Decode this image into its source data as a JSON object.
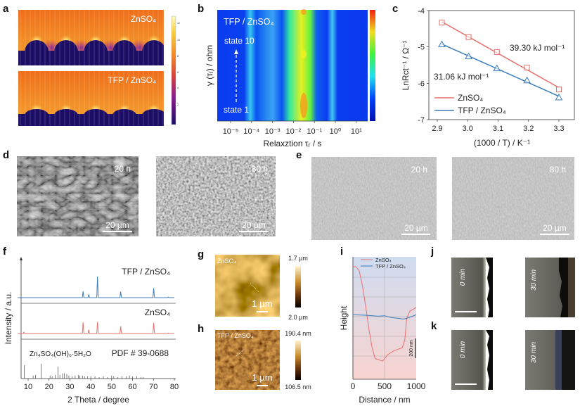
{
  "panel_labels": [
    "a",
    "b",
    "c",
    "d",
    "e",
    "f",
    "g",
    "h",
    "i",
    "j",
    "k"
  ],
  "panel_a": {
    "top_label": "ZnSO₄",
    "bottom_label": "TFP / ZnSO₄",
    "colorbar_ticks": [
      "12",
      "10",
      "8",
      "6",
      "4",
      "2"
    ]
  },
  "panel_d": {
    "label1": "20 h",
    "label2": "80 h",
    "scale1": "20 µm",
    "scale2": "20 µm"
  },
  "panel_e": {
    "label1": "20 h",
    "label2": "80 h",
    "scale1": "20 µm",
    "scale2": "20 µm"
  },
  "panel_g": {
    "label": "ZnSO₄",
    "scale": "1 µm",
    "cb_top": "1.7 µm",
    "cb_bottom": "2.0 µm"
  },
  "panel_h": {
    "label": "TFP / ZnSO₄",
    "scale": "1 µm",
    "cb_top": "190.4 nm",
    "cb_bottom": "106.5 nm"
  },
  "panel_j": {
    "label1": "0 min",
    "label2": "30 min"
  },
  "panel_k": {
    "label1": "0 min",
    "label2": "30 min"
  },
  "colors": {
    "zn": "#e8716d",
    "tfp": "#3b7dbd"
  },
  "chart_data": [
    {
      "id": "b",
      "type": "heatmap",
      "title": "TFP / ZnSO₄",
      "xlabel": "Relaxztion τᵣ / s",
      "ylabel": "γ (τᵣ) / ohm",
      "xscale": "log",
      "xticks": [
        "10⁻⁵",
        "10⁻⁴",
        "10⁻³",
        "10⁻²",
        "10⁻¹",
        "10⁰",
        "10¹"
      ],
      "annotations": [
        "state 10",
        "state 1"
      ],
      "peak_tau_log10": [
        -3.6,
        -2.8,
        -1.6,
        -0.2
      ]
    },
    {
      "id": "c",
      "type": "scatter",
      "xlabel": "(1000 / T) / K⁻¹",
      "ylabel": "LnRct⁻¹ / Ω⁻¹",
      "xlim": [
        2.87,
        3.35
      ],
      "ylim": [
        -7,
        -4
      ],
      "xticks": [
        "2.9",
        "3.0",
        "3.1",
        "3.2",
        "3.3"
      ],
      "yticks": [
        "-4",
        "-5",
        "-6",
        "-7"
      ],
      "x": [
        2.915,
        3.003,
        3.096,
        3.195,
        3.3
      ],
      "series": [
        {
          "name": "ZnSO₄",
          "values": [
            -4.33,
            -4.73,
            -5.14,
            -5.57,
            -6.17
          ],
          "marker": "square",
          "annotation": "39.30 kJ mol⁻¹"
        },
        {
          "name": "TFP / ZnSO₄",
          "values": [
            -4.93,
            -5.26,
            -5.59,
            -5.92,
            -6.39
          ],
          "marker": "triangle",
          "annotation": "31.06 kJ mol⁻¹"
        }
      ],
      "legend": "bottom-left"
    },
    {
      "id": "f",
      "type": "line",
      "xlabel": "2 Theta / degree",
      "ylabel": "Intensity / a.u.",
      "xlim": [
        5,
        80
      ],
      "xticks": [
        "10",
        "20",
        "30",
        "40",
        "50",
        "60",
        "70",
        "80"
      ],
      "series": [
        {
          "name": "TFP / ZnSO₄",
          "peaks": [
            [
              36.3,
              0.3
            ],
            [
              39.0,
              0.15
            ],
            [
              43.2,
              1.0
            ],
            [
              54.3,
              0.28
            ],
            [
              70.1,
              0.45
            ],
            [
              77.0,
              0.03
            ]
          ]
        },
        {
          "name": "ZnSO₄",
          "peaks": [
            [
              8.0,
              0.06
            ],
            [
              36.3,
              0.53
            ],
            [
              39.0,
              0.18
            ],
            [
              43.2,
              0.55
            ],
            [
              54.3,
              0.35
            ],
            [
              70.1,
              0.5
            ],
            [
              77.0,
              0.03
            ]
          ]
        }
      ],
      "reference": {
        "name": "Zn₄SO₄(OH)₆·5H₂O",
        "card": "PDF # 39-0688",
        "sticks": [
          [
            8.2,
            0.9
          ],
          [
            12.4,
            0.2
          ],
          [
            13.5,
            0.25
          ],
          [
            16.3,
            1.0
          ],
          [
            20.5,
            0.2
          ],
          [
            21.5,
            0.15
          ],
          [
            23.0,
            0.25
          ],
          [
            24.3,
            0.8
          ],
          [
            25.2,
            0.25
          ],
          [
            26.5,
            0.35
          ],
          [
            27.4,
            0.35
          ],
          [
            28.5,
            0.3
          ],
          [
            29.5,
            0.2
          ],
          [
            31,
            0.15
          ],
          [
            32.5,
            0.2
          ],
          [
            34,
            0.25
          ],
          [
            34.8,
            0.2
          ],
          [
            36,
            0.2
          ],
          [
            37,
            0.15
          ],
          [
            38.5,
            0.15
          ],
          [
            40,
            0.15
          ],
          [
            42,
            0.15
          ],
          [
            44,
            0.1
          ],
          [
            46,
            0.15
          ],
          [
            48,
            0.1
          ],
          [
            50,
            0.2
          ],
          [
            51,
            0.15
          ],
          [
            53,
            0.1
          ],
          [
            55,
            0.15
          ],
          [
            57,
            0.15
          ],
          [
            58.5,
            0.2
          ],
          [
            60,
            0.15
          ],
          [
            62,
            0.15
          ],
          [
            64,
            0.1
          ],
          [
            65,
            0.1
          ]
        ]
      }
    },
    {
      "id": "i",
      "type": "line",
      "xlabel": "Distance / nm",
      "ylabel": "Height",
      "xlim": [
        0,
        1000
      ],
      "ylim": [
        0,
        1250
      ],
      "xticks": [
        "0",
        "500",
        "1000"
      ],
      "scale_bar": "200 nm",
      "series": [
        {
          "name": "ZnSO₄",
          "x": [
            0,
            50,
            100,
            150,
            200,
            250,
            300,
            350,
            400,
            470,
            550,
            650,
            780,
            820,
            850,
            900,
            1000
          ],
          "y": [
            1143,
            1143,
            1100,
            950,
            750,
            520,
            330,
            210,
            200,
            185,
            250,
            290,
            320,
            400,
            620,
            690,
            730
          ]
        },
        {
          "name": "TFP / ZnSO₄",
          "x": [
            0,
            200,
            400,
            500,
            600,
            800,
            850,
            1000
          ],
          "y": [
            655,
            650,
            640,
            645,
            628,
            612,
            618,
            655
          ]
        }
      ],
      "legend": "top-right"
    }
  ]
}
